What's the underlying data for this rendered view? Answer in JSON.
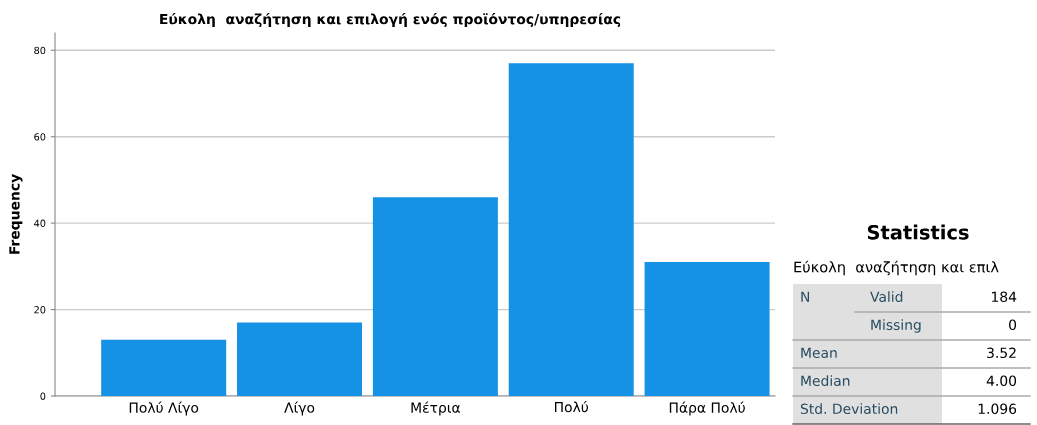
{
  "chart_data": {
    "type": "bar",
    "title": "Εύκολη  αναζήτηση και επιλογή ενός προϊόντος/υπηρεσίας",
    "ylabel": "Frequency",
    "categories": [
      "Πολύ Λίγο",
      "Λίγο",
      "Μέτρια",
      "Πολύ",
      "Πάρα Πολύ"
    ],
    "values": [
      13,
      17,
      46,
      77,
      31
    ],
    "color": "#1591e6",
    "ylim": [
      0,
      84
    ],
    "yticks": [
      0,
      20,
      40,
      60,
      80
    ],
    "grid": "y",
    "annotations": [
      "Statistics",
      "Εύκολη  αναζήτηση και επιλ",
      "N",
      "Valid",
      "184",
      "Missing",
      "0",
      "Mean",
      "3.52",
      "Median",
      "4.00",
      "Std. Deviation",
      "1.096"
    ]
  }
}
